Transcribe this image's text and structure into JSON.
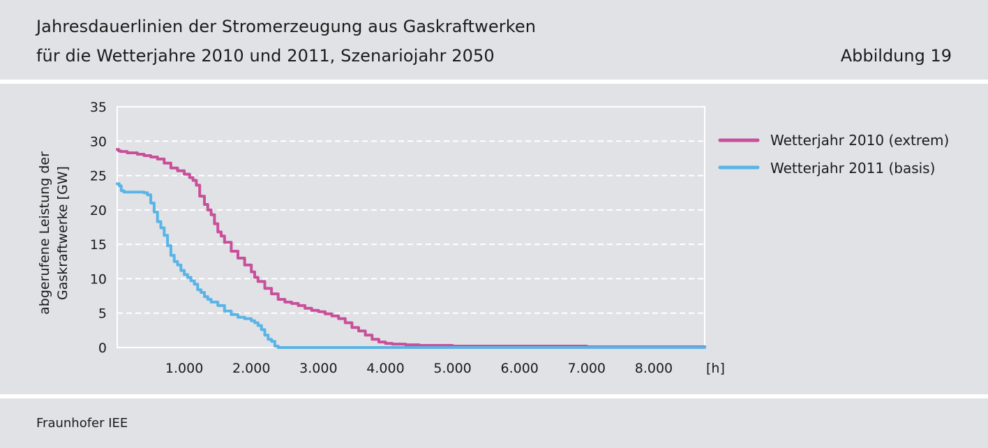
{
  "header": {
    "title_line1": "Jahresdauerlinien der Stromerzeugung aus Gaskraftwerken",
    "title_line2": "für die Wetterjahre 2010 und 2011, Szenariojahr 2050",
    "figure_label": "Abbildung 19"
  },
  "footer": {
    "source": "Fraunhofer IEE"
  },
  "colors": {
    "background": "#e1e2e6",
    "series_2010": "#c8509a",
    "series_2011": "#5ab4e6",
    "grid": "#ffffff"
  },
  "chart_data": {
    "type": "line",
    "title": "Jahresdauerlinien der Stromerzeugung aus Gaskraftwerken für die Wetterjahre 2010 und 2011, Szenariojahr 2050",
    "xlabel": "[h]",
    "ylabel_lines": [
      "abgerufene Leistung der",
      "Gaskraftwerke [GW]"
    ],
    "xlim": [
      0,
      8760
    ],
    "ylim": [
      0,
      35
    ],
    "x_ticks": [
      1000,
      2000,
      3000,
      4000,
      5000,
      6000,
      7000,
      8000
    ],
    "x_tick_labels": [
      "1.000",
      "2.000",
      "3.000",
      "4.000",
      "5.000",
      "6.000",
      "7.000",
      "8.000"
    ],
    "y_ticks": [
      0,
      5,
      10,
      15,
      20,
      25,
      30,
      35
    ],
    "y_tick_labels": [
      "0",
      "5",
      "10",
      "15",
      "20",
      "25",
      "30",
      "35"
    ],
    "grid": "horizontal dashed",
    "legend_position": "right",
    "series": [
      {
        "name": "Wetterjahr 2010 (extrem)",
        "color": "#c8509a",
        "x": [
          0,
          20,
          50,
          150,
          300,
          400,
          500,
          600,
          700,
          800,
          900,
          1000,
          1080,
          1130,
          1180,
          1230,
          1300,
          1350,
          1400,
          1450,
          1500,
          1550,
          1600,
          1700,
          1800,
          1900,
          2000,
          2050,
          2100,
          2200,
          2300,
          2400,
          2500,
          2600,
          2700,
          2800,
          2900,
          3000,
          3100,
          3200,
          3300,
          3400,
          3500,
          3600,
          3700,
          3800,
          3900,
          4000,
          4100,
          4200,
          4300,
          4500,
          4800,
          5000,
          6000,
          6350,
          7000,
          8000,
          8760
        ],
        "y": [
          28.8,
          28.6,
          28.5,
          28.3,
          28.1,
          27.9,
          27.7,
          27.4,
          26.8,
          26.1,
          25.7,
          25.2,
          24.7,
          24.3,
          23.6,
          22.0,
          20.8,
          20.0,
          19.3,
          18.0,
          16.8,
          16.2,
          15.3,
          14.0,
          13.0,
          12.0,
          11.0,
          10.2,
          9.6,
          8.6,
          7.8,
          7.0,
          6.6,
          6.4,
          6.1,
          5.7,
          5.4,
          5.2,
          4.9,
          4.6,
          4.2,
          3.6,
          2.9,
          2.4,
          1.8,
          1.2,
          0.8,
          0.6,
          0.5,
          0.5,
          0.4,
          0.3,
          0.3,
          0.2,
          0.2,
          0.2,
          0.1,
          0.1,
          0.1
        ]
      },
      {
        "name": "Wetterjahr 2011 (basis)",
        "color": "#5ab4e6",
        "x": [
          0,
          30,
          60,
          100,
          200,
          300,
          400,
          450,
          500,
          550,
          600,
          650,
          700,
          750,
          800,
          850,
          900,
          950,
          1000,
          1050,
          1100,
          1150,
          1200,
          1250,
          1300,
          1350,
          1400,
          1500,
          1600,
          1700,
          1800,
          1900,
          2000,
          2050,
          2100,
          2150,
          2200,
          2250,
          2300,
          2350,
          2400,
          2500,
          3000,
          5000,
          8760
        ],
        "y": [
          23.8,
          23.5,
          22.8,
          22.6,
          22.6,
          22.6,
          22.5,
          22.2,
          21.0,
          19.7,
          18.3,
          17.4,
          16.3,
          14.8,
          13.4,
          12.5,
          12.0,
          11.2,
          10.6,
          10.2,
          9.7,
          9.2,
          8.4,
          8.0,
          7.4,
          7.0,
          6.6,
          6.1,
          5.3,
          4.8,
          4.4,
          4.2,
          3.9,
          3.6,
          3.2,
          2.6,
          1.8,
          1.2,
          0.9,
          0.2,
          0.0,
          0.0,
          0.0,
          0.0,
          0.0
        ]
      }
    ]
  }
}
